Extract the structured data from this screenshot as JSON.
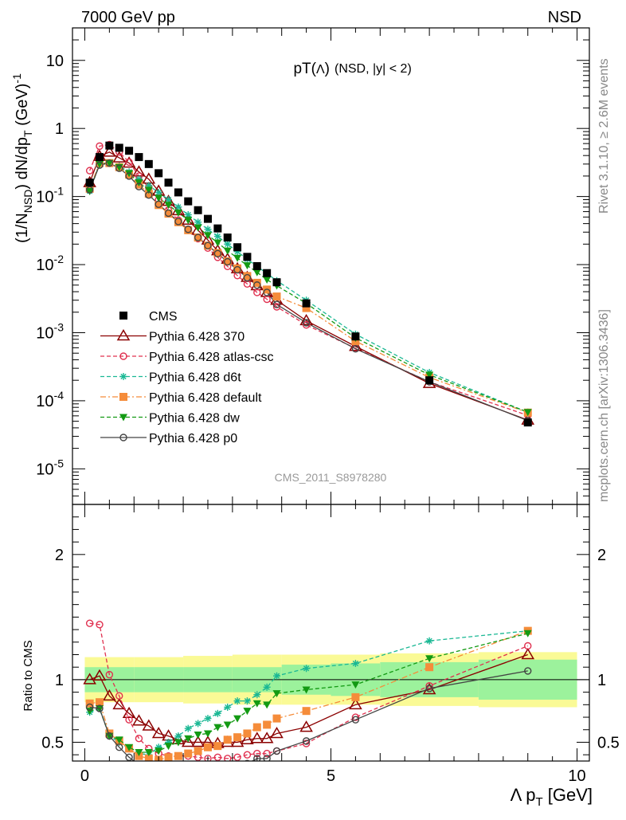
{
  "header": {
    "left": "7000 GeV pp",
    "right": "NSD",
    "title_main": "pT(",
    "title_lambda": "Λ",
    "title_close": ")",
    "title_cut": "(NSD, |y| < 2)",
    "side_rivet": "Rivet 3.1.10, ≥ 2.6M events",
    "side_mcplots": "mcplots.cern.ch [arXiv:1306.3436]",
    "analysis": "CMS_2011_S8978280"
  },
  "chart_data": [
    {
      "type": "scatter",
      "panel": "main",
      "y_scale": "log",
      "xlim": [
        -0.25,
        10.25
      ],
      "ylim": [
        3e-06,
        30
      ],
      "ylabel": "(1/N_NSD) dN/dp_T (GeV)^-1",
      "y_tick_labels": [
        "10",
        "1",
        "10^-1",
        "10^-2",
        "10^-3",
        "10^-4",
        "10^-5"
      ],
      "legend_position": "lower-left",
      "series": [
        {
          "name": "CMS",
          "color": "#000000",
          "marker": "square",
          "line": "none",
          "x": [
            0.1,
            0.3,
            0.5,
            0.7,
            0.9,
            1.1,
            1.3,
            1.5,
            1.7,
            1.9,
            2.1,
            2.3,
            2.5,
            2.7,
            2.9,
            3.1,
            3.3,
            3.5,
            3.7,
            3.9,
            4.5,
            5.5,
            7.0,
            9.0
          ],
          "y": [
            0.16,
            0.38,
            0.56,
            0.52,
            0.47,
            0.38,
            0.3,
            0.22,
            0.16,
            0.115,
            0.085,
            0.063,
            0.047,
            0.034,
            0.025,
            0.018,
            0.013,
            0.0095,
            0.0075,
            0.0055,
            0.0027,
            0.00088,
            0.0002,
            4.8e-05
          ]
        },
        {
          "name": "Pythia 6.428 370",
          "color": "#8b0000",
          "marker": "triangle-open",
          "line": "solid",
          "x": [
            0.1,
            0.3,
            0.5,
            0.7,
            0.9,
            1.1,
            1.3,
            1.5,
            1.7,
            1.9,
            2.1,
            2.3,
            2.5,
            2.7,
            2.9,
            3.1,
            3.3,
            3.5,
            3.7,
            3.9,
            4.5,
            5.5,
            7.0,
            9.0
          ],
          "y": [
            0.16,
            0.39,
            0.45,
            0.37,
            0.31,
            0.23,
            0.18,
            0.12,
            0.085,
            0.062,
            0.045,
            0.032,
            0.023,
            0.016,
            0.012,
            0.0087,
            0.0065,
            0.0049,
            0.0039,
            0.003,
            0.0015,
            0.00063,
            0.00018,
            5.2e-05
          ]
        },
        {
          "name": "Pythia 6.428 atlas-csc",
          "color": "#e0304f",
          "marker": "circle-open",
          "line": "dashed",
          "x": [
            0.1,
            0.3,
            0.5,
            0.7,
            0.9,
            1.1,
            1.3,
            1.5,
            1.7,
            1.9,
            2.1,
            2.3,
            2.5,
            2.7,
            2.9,
            3.1,
            3.3,
            3.5,
            3.7,
            3.9,
            4.5,
            5.5,
            7.0,
            9.0
          ],
          "y": [
            0.24,
            0.55,
            0.58,
            0.45,
            0.32,
            0.2,
            0.135,
            0.09,
            0.063,
            0.045,
            0.033,
            0.024,
            0.0175,
            0.0128,
            0.0094,
            0.0069,
            0.0052,
            0.0039,
            0.0031,
            0.0024,
            0.0013,
            0.00059,
            0.00019,
            6.1e-05
          ]
        },
        {
          "name": "Pythia 6.428 d6t",
          "color": "#1ab894",
          "marker": "star",
          "line": "dashed",
          "x": [
            0.1,
            0.3,
            0.5,
            0.7,
            0.9,
            1.1,
            1.3,
            1.5,
            1.7,
            1.9,
            2.1,
            2.3,
            2.5,
            2.7,
            2.9,
            3.1,
            3.3,
            3.5,
            3.7,
            3.9,
            4.5,
            5.5,
            7.0,
            9.0
          ],
          "y": [
            0.12,
            0.3,
            0.31,
            0.28,
            0.23,
            0.18,
            0.145,
            0.115,
            0.09,
            0.07,
            0.054,
            0.042,
            0.033,
            0.026,
            0.02,
            0.0155,
            0.012,
            0.0094,
            0.0074,
            0.0058,
            0.003,
            0.00095,
            0.00026,
            6.8e-05
          ]
        },
        {
          "name": "Pythia 6.428 default",
          "color": "#f58c3a",
          "marker": "square",
          "line": "dashdot",
          "x": [
            0.1,
            0.3,
            0.5,
            0.7,
            0.9,
            1.1,
            1.3,
            1.5,
            1.7,
            1.9,
            2.1,
            2.3,
            2.5,
            2.7,
            2.9,
            3.1,
            3.3,
            3.5,
            3.7,
            3.9,
            4.5,
            5.5,
            7.0,
            9.0
          ],
          "y": [
            0.13,
            0.31,
            0.31,
            0.27,
            0.21,
            0.15,
            0.11,
            0.075,
            0.056,
            0.042,
            0.032,
            0.025,
            0.019,
            0.0148,
            0.0112,
            0.0088,
            0.0068,
            0.0054,
            0.0043,
            0.0034,
            0.0023,
            0.00075,
            0.00022,
            6.7e-05
          ]
        },
        {
          "name": "Pythia 6.428 dw",
          "color": "#139a13",
          "marker": "triangle-down",
          "line": "dashed",
          "x": [
            0.1,
            0.3,
            0.5,
            0.7,
            0.9,
            1.1,
            1.3,
            1.5,
            1.7,
            1.9,
            2.1,
            2.3,
            2.5,
            2.7,
            2.9,
            3.1,
            3.3,
            3.5,
            3.7,
            3.9,
            4.5,
            5.5,
            7.0,
            9.0
          ],
          "y": [
            0.12,
            0.3,
            0.31,
            0.27,
            0.22,
            0.16,
            0.125,
            0.095,
            0.075,
            0.058,
            0.045,
            0.035,
            0.027,
            0.021,
            0.016,
            0.0125,
            0.0097,
            0.0077,
            0.006,
            0.0049,
            0.0027,
            0.00084,
            0.00024,
            6.8e-05
          ]
        },
        {
          "name": "Pythia 6.428 p0",
          "color": "#444444",
          "marker": "circle-open",
          "line": "solid",
          "x": [
            0.1,
            0.3,
            0.5,
            0.7,
            0.9,
            1.1,
            1.3,
            1.5,
            1.7,
            1.9,
            2.1,
            2.3,
            2.5,
            2.7,
            2.9,
            3.1,
            3.3,
            3.5,
            3.7,
            3.9,
            4.5,
            5.5,
            7.0,
            9.0
          ],
          "y": [
            0.125,
            0.29,
            0.31,
            0.26,
            0.2,
            0.14,
            0.105,
            0.077,
            0.057,
            0.043,
            0.033,
            0.025,
            0.019,
            0.0145,
            0.011,
            0.0084,
            0.0064,
            0.005,
            0.0039,
            0.0026,
            0.0014,
            0.00058,
            0.00019,
            5.1e-05
          ]
        }
      ]
    },
    {
      "type": "scatter",
      "panel": "ratio",
      "xlim": [
        -0.25,
        10.25
      ],
      "ylim": [
        0.35,
        2.4
      ],
      "xlabel": "Λ p_T [GeV]",
      "ylabel": "Ratio to CMS",
      "x_tick_labels": [
        "0",
        "5",
        "10"
      ],
      "y_tick_labels": [
        "0.5",
        "1",
        "2"
      ],
      "bands": {
        "color_inner": "#9cf29c",
        "color_outer": "#fafa96",
        "bins": [
          0.0,
          1.0,
          2.0,
          3.0,
          4.0,
          5.0,
          6.0,
          8.0,
          10.0
        ],
        "inner": [
          0.1,
          0.1,
          0.1,
          0.1,
          0.12,
          0.13,
          0.14,
          0.16
        ],
        "outer": [
          0.18,
          0.18,
          0.19,
          0.2,
          0.2,
          0.2,
          0.21,
          0.22
        ]
      },
      "series": [
        {
          "name": "Pythia 6.428 370",
          "x": [
            0.1,
            0.3,
            0.5,
            0.7,
            0.9,
            1.1,
            1.3,
            1.5,
            1.7,
            1.9,
            2.1,
            2.3,
            2.5,
            2.7,
            2.9,
            3.1,
            3.3,
            3.5,
            3.7,
            3.9,
            4.5,
            5.5,
            7.0,
            9.0
          ],
          "y": [
            1.0,
            1.03,
            0.87,
            0.8,
            0.73,
            0.67,
            0.63,
            0.57,
            0.55,
            0.52,
            0.5,
            0.5,
            0.5,
            0.49,
            0.5,
            0.5,
            0.52,
            0.53,
            0.53,
            0.57,
            0.62,
            0.8,
            0.92,
            1.2
          ]
        },
        {
          "name": "Pythia 6.428 atlas-csc",
          "x": [
            0.1,
            0.3,
            0.5,
            0.7,
            0.9,
            1.1,
            1.3,
            1.5,
            1.7,
            1.9,
            2.1,
            2.3,
            2.5,
            2.7,
            2.9,
            3.1,
            3.3,
            3.5,
            3.7,
            3.9,
            4.5,
            5.5,
            7.0,
            9.0
          ],
          "y": [
            1.45,
            1.44,
            1.04,
            0.87,
            0.68,
            0.53,
            0.45,
            0.41,
            0.39,
            0.39,
            0.39,
            0.38,
            0.37,
            0.38,
            0.37,
            0.38,
            0.4,
            0.41,
            0.41,
            0.43,
            0.49,
            0.7,
            0.95,
            1.27
          ]
        },
        {
          "name": "Pythia 6.428 d6t",
          "x": [
            0.1,
            0.3,
            0.5,
            0.7,
            0.9,
            1.1,
            1.3,
            1.5,
            1.7,
            1.9,
            2.1,
            2.3,
            2.5,
            2.7,
            2.9,
            3.1,
            3.3,
            3.5,
            3.7,
            3.9,
            4.5,
            5.5,
            7.0,
            9.0
          ],
          "y": [
            0.74,
            0.77,
            0.55,
            0.5,
            0.45,
            0.41,
            0.4,
            0.46,
            0.5,
            0.55,
            0.61,
            0.65,
            0.69,
            0.73,
            0.78,
            0.83,
            0.83,
            0.88,
            0.94,
            1.03,
            1.09,
            1.13,
            1.31,
            1.39
          ]
        },
        {
          "name": "Pythia 6.428 default",
          "x": [
            0.1,
            0.3,
            0.5,
            0.7,
            0.9,
            1.1,
            1.3,
            1.5,
            1.7,
            1.9,
            2.1,
            2.3,
            2.5,
            2.7,
            2.9,
            3.1,
            3.3,
            3.5,
            3.7,
            3.9,
            4.5,
            5.5,
            7.0,
            9.0
          ],
          "y": [
            0.81,
            0.82,
            0.57,
            0.51,
            0.45,
            0.39,
            0.37,
            0.36,
            0.38,
            0.39,
            0.41,
            0.43,
            0.46,
            0.47,
            0.52,
            0.54,
            0.57,
            0.62,
            0.64,
            0.69,
            0.75,
            0.86,
            1.1,
            1.39
          ]
        },
        {
          "name": "Pythia 6.428 dw",
          "x": [
            0.1,
            0.3,
            0.5,
            0.7,
            0.9,
            1.1,
            1.3,
            1.5,
            1.7,
            1.9,
            2.1,
            2.3,
            2.5,
            2.7,
            2.9,
            3.1,
            3.3,
            3.5,
            3.7,
            3.9,
            4.5,
            5.5,
            7.0,
            9.0
          ],
          "y": [
            0.75,
            0.77,
            0.55,
            0.52,
            0.46,
            0.42,
            0.42,
            0.43,
            0.47,
            0.5,
            0.53,
            0.56,
            0.57,
            0.62,
            0.64,
            0.69,
            0.75,
            0.81,
            0.8,
            0.89,
            0.92,
            0.96,
            1.17,
            1.37
          ]
        },
        {
          "name": "Pythia 6.428 p0",
          "x": [
            0.1,
            0.3,
            0.5,
            0.7,
            0.9,
            1.1,
            1.3,
            1.5,
            1.7,
            1.9,
            2.1,
            2.3,
            2.5,
            2.7,
            2.9,
            3.1,
            3.3,
            3.5,
            3.7,
            3.9,
            4.5,
            5.5,
            7.0,
            9.0
          ],
          "y": [
            0.78,
            0.77,
            0.55,
            0.46,
            0.38,
            0.32,
            0.29,
            0.29,
            0.29,
            0.29,
            0.29,
            0.29,
            0.3,
            0.3,
            0.3,
            0.31,
            0.33,
            0.37,
            0.37,
            0.43,
            0.51,
            0.68,
            0.93,
            1.07
          ]
        }
      ]
    }
  ],
  "legend": {
    "items": [
      "CMS",
      "Pythia 6.428 370",
      "Pythia 6.428 atlas-csc",
      "Pythia 6.428 d6t",
      "Pythia 6.428 default",
      "Pythia 6.428 dw",
      "Pythia 6.428 p0"
    ]
  }
}
